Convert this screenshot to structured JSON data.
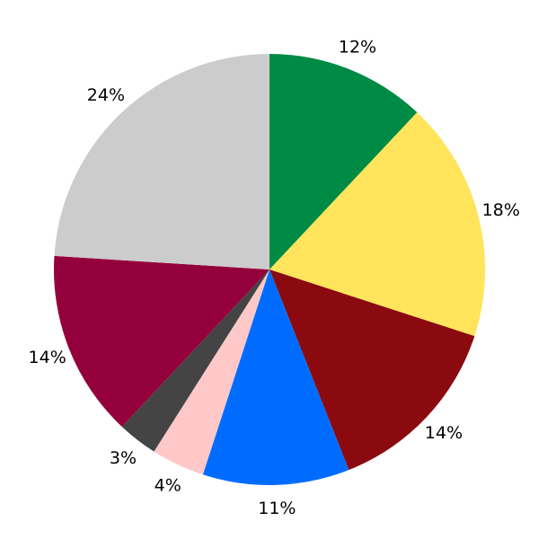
{
  "chart_data": {
    "type": "pie",
    "start_angle": "top",
    "direction": "clockwise",
    "values": [
      12,
      18,
      14,
      11,
      4,
      3,
      14,
      24
    ],
    "labels": [
      "12%",
      "18%",
      "14%",
      "11%",
      "4%",
      "3%",
      "14%",
      "24%"
    ],
    "colors": [
      "#008b45",
      "#ffe45c",
      "#8b0a10",
      "#006cff",
      "#ffc8c8",
      "#444444",
      "#94003c",
      "#cccccc"
    ]
  }
}
